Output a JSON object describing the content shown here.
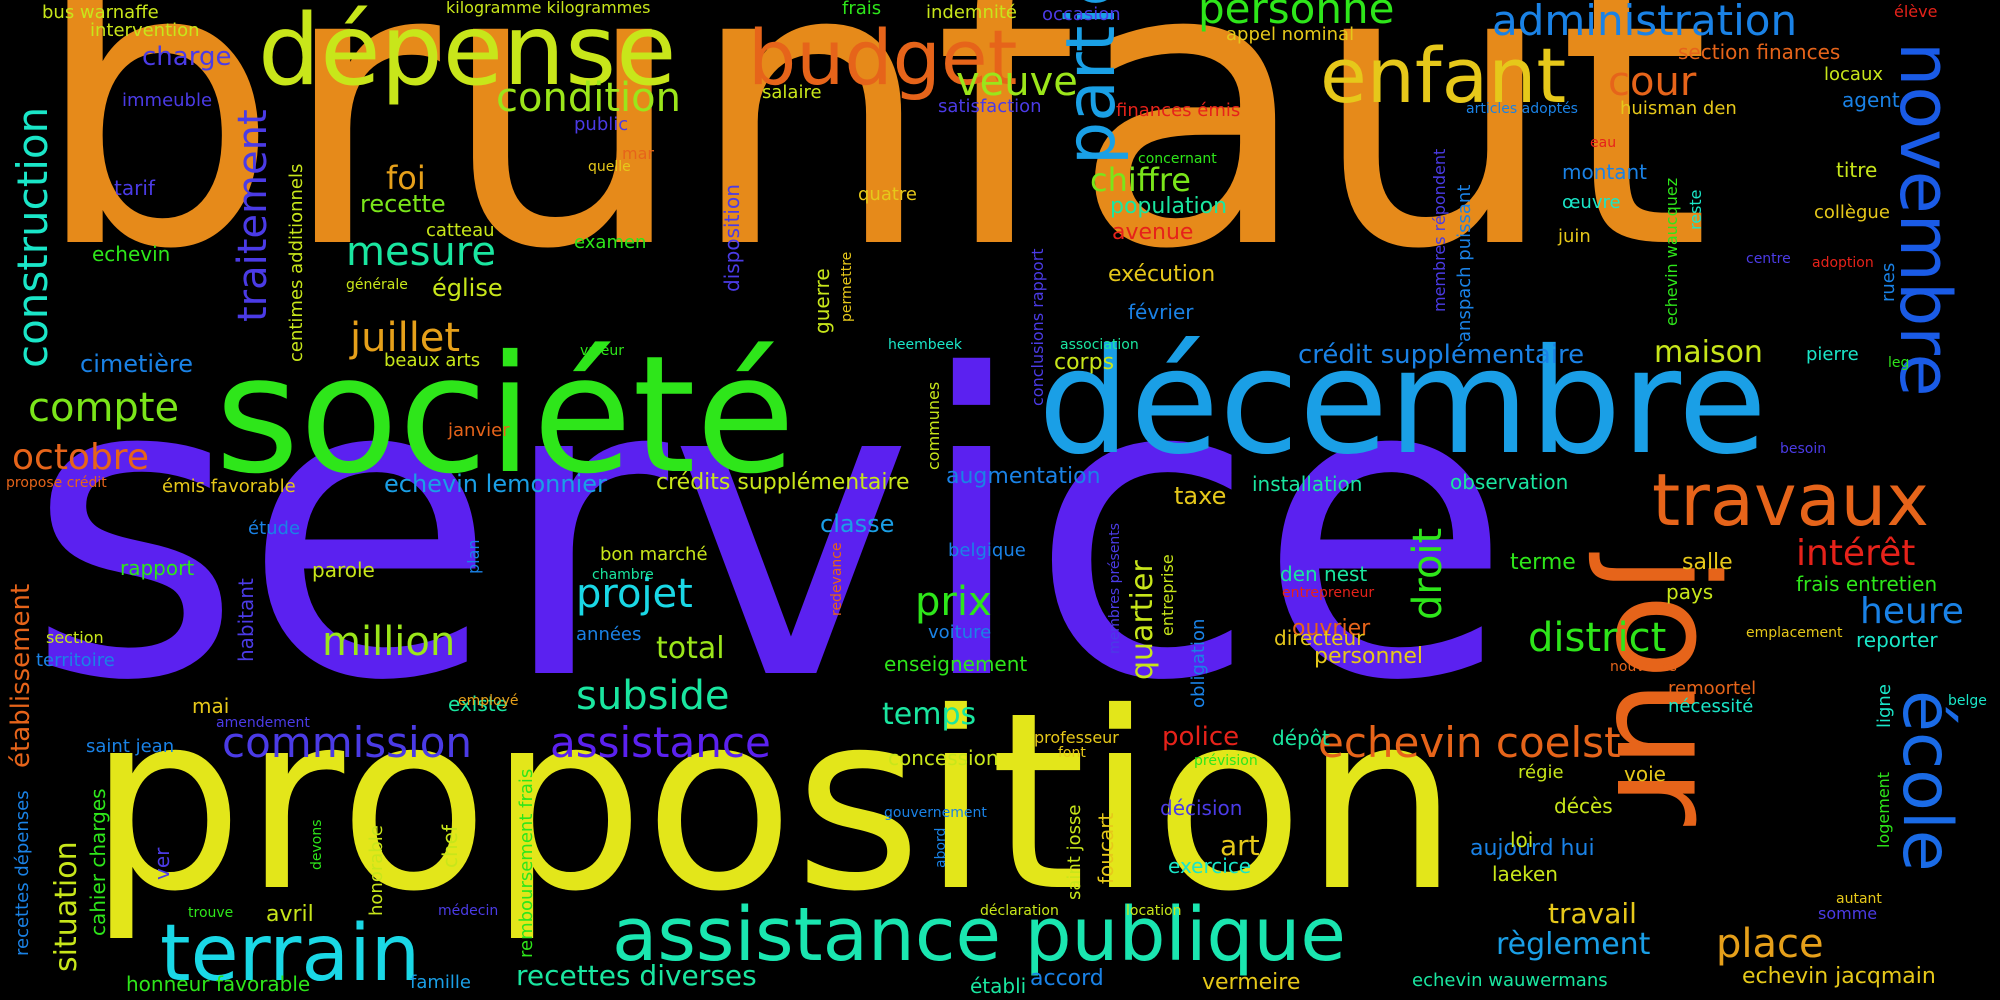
{
  "words": [
    {
      "text": "service",
      "color": "#5b21f0"
    },
    {
      "text": "brunfaut",
      "color": "#e68a1a"
    },
    {
      "text": "proposition",
      "color": "#e3e61a"
    },
    {
      "text": "société",
      "color": "#2ee61a"
    },
    {
      "text": "décembre",
      "color": "#1a9fe6"
    },
    {
      "text": "jour",
      "color": "#e6641a"
    },
    {
      "text": "dépense",
      "color": "#c8e61a"
    },
    {
      "text": "budget",
      "color": "#e6641a"
    },
    {
      "text": "enfant",
      "color": "#e6c81a"
    },
    {
      "text": "terrain",
      "color": "#1ad8e6"
    },
    {
      "text": "assistance publique",
      "color": "#1ae6b0"
    },
    {
      "text": "partie",
      "color": "#1aa0e6"
    },
    {
      "text": "novembre",
      "color": "#1a5be6"
    },
    {
      "text": "école",
      "color": "#1a6be6"
    },
    {
      "text": "travaux",
      "color": "#e6641a"
    },
    {
      "text": "construction",
      "color": "#1ae6c8"
    },
    {
      "text": "administration",
      "color": "#1a82e6"
    },
    {
      "text": "personne",
      "color": "#2ee61a"
    },
    {
      "text": "condition",
      "color": "#9be61a"
    },
    {
      "text": "veuve",
      "color": "#9be61a"
    },
    {
      "text": "cour",
      "color": "#e6641a"
    },
    {
      "text": "traitement",
      "color": "#4b3be6"
    },
    {
      "text": "mesure",
      "color": "#1ae6a0"
    },
    {
      "text": "juillet",
      "color": "#e6a01a"
    },
    {
      "text": "compte",
      "color": "#7be61a"
    },
    {
      "text": "octobre",
      "color": "#e6641a"
    },
    {
      "text": "chiffre",
      "color": "#7be61a"
    },
    {
      "text": "commission",
      "color": "#4b3be6"
    },
    {
      "text": "assistance",
      "color": "#5b21f0"
    },
    {
      "text": "echevin coelst",
      "color": "#e6641a"
    },
    {
      "text": "projet",
      "color": "#1ad8e6"
    },
    {
      "text": "prix",
      "color": "#2ee61a"
    },
    {
      "text": "million",
      "color": "#9be61a"
    },
    {
      "text": "subside",
      "color": "#1ae6a0"
    },
    {
      "text": "district",
      "color": "#2ee61a"
    },
    {
      "text": "heure",
      "color": "#1a82e6"
    },
    {
      "text": "droit",
      "color": "#2ee61a"
    },
    {
      "text": "intérêt",
      "color": "#e6221a"
    },
    {
      "text": "place",
      "color": "#e6a01a"
    },
    {
      "text": "situation",
      "color": "#c8e61a"
    },
    {
      "text": "établissement",
      "color": "#e6641a"
    },
    {
      "text": "recettes diverses",
      "color": "#1ae6a0"
    },
    {
      "text": "règlement",
      "color": "#1a9fe6"
    },
    {
      "text": "maison",
      "color": "#c8e61a"
    },
    {
      "text": "quartier",
      "color": "#c8e61a"
    },
    {
      "text": "foi",
      "color": "#e6a01a"
    },
    {
      "text": "charge",
      "color": "#4b3be6"
    },
    {
      "text": "cimetière",
      "color": "#1a82e6"
    },
    {
      "text": "total",
      "color": "#9be61a"
    },
    {
      "text": "temps",
      "color": "#1ae6a0"
    },
    {
      "text": "art",
      "color": "#e6c81a"
    },
    {
      "text": "travail",
      "color": "#e6c81a"
    },
    {
      "text": "police",
      "color": "#e6221a"
    },
    {
      "text": "crédit supplémentaire",
      "color": "#1a82e6"
    },
    {
      "text": "echevin lemonnier",
      "color": "#1a9fe6"
    },
    {
      "text": "crédits supplémentaire",
      "color": "#c8e61a"
    },
    {
      "text": "recette",
      "color": "#7be61a"
    },
    {
      "text": "église",
      "color": "#c8e61a"
    },
    {
      "text": "avenue",
      "color": "#e6221a"
    },
    {
      "text": "exécution",
      "color": "#e6c81a"
    },
    {
      "text": "population",
      "color": "#1ae6a0"
    },
    {
      "text": "corps",
      "color": "#c8e61a"
    },
    {
      "text": "augmentation",
      "color": "#1a82e6"
    },
    {
      "text": "classe",
      "color": "#1a9fe6"
    },
    {
      "text": "taxe",
      "color": "#e6c81a"
    },
    {
      "text": "installation",
      "color": "#1ae6a0"
    },
    {
      "text": "observation",
      "color": "#1ae6a0"
    },
    {
      "text": "terme",
      "color": "#2ee61a"
    },
    {
      "text": "salle",
      "color": "#e6c81a"
    },
    {
      "text": "pays",
      "color": "#c8e61a"
    },
    {
      "text": "frais entretien",
      "color": "#2ee61a"
    },
    {
      "text": "reporter",
      "color": "#1ae6c8"
    },
    {
      "text": "ouvrier",
      "color": "#e6641a"
    },
    {
      "text": "directeur",
      "color": "#e6c81a"
    },
    {
      "text": "personnel",
      "color": "#e6c81a"
    },
    {
      "text": "den nest",
      "color": "#1ae6a0"
    },
    {
      "text": "enseignement",
      "color": "#2ee61a"
    },
    {
      "text": "concession",
      "color": "#c8e61a"
    },
    {
      "text": "décision",
      "color": "#4b3be6"
    },
    {
      "text": "exercice",
      "color": "#1ae6c8"
    },
    {
      "text": "dépôt",
      "color": "#1ae6a0"
    },
    {
      "text": "aujourd hui",
      "color": "#1a82e6"
    },
    {
      "text": "laeken",
      "color": "#c8e61a"
    },
    {
      "text": "décès",
      "color": "#c8e61a"
    },
    {
      "text": "loi",
      "color": "#c8e61a"
    },
    {
      "text": "régie",
      "color": "#c8e61a"
    },
    {
      "text": "voie",
      "color": "#e6c81a"
    },
    {
      "text": "vermeire",
      "color": "#e6c81a"
    },
    {
      "text": "echevin jacqmain",
      "color": "#e6c81a"
    },
    {
      "text": "echevin wauwermans",
      "color": "#1ae6a0"
    },
    {
      "text": "accord",
      "color": "#1a82e6"
    },
    {
      "text": "établi",
      "color": "#1ae6a0"
    },
    {
      "text": "honneur favorable",
      "color": "#2ee61a"
    },
    {
      "text": "famille",
      "color": "#1a9fe6"
    },
    {
      "text": "avril",
      "color": "#c8e61a"
    },
    {
      "text": "mai",
      "color": "#e6c81a"
    },
    {
      "text": "existe",
      "color": "#1ae6a0"
    },
    {
      "text": "saint jean",
      "color": "#1a82e6"
    },
    {
      "text": "territoire",
      "color": "#1a82e6"
    },
    {
      "text": "section",
      "color": "#c8e61a"
    },
    {
      "text": "rapport",
      "color": "#2ee61a"
    },
    {
      "text": "parole",
      "color": "#c8e61a"
    },
    {
      "text": "étude",
      "color": "#1a82e6"
    },
    {
      "text": "bon marché",
      "color": "#c8e61a"
    },
    {
      "text": "chambre",
      "color": "#1ae6a0"
    },
    {
      "text": "années",
      "color": "#1a82e6"
    },
    {
      "text": "voiture",
      "color": "#1a82e6"
    },
    {
      "text": "belgique",
      "color": "#1a82e6"
    },
    {
      "text": "émis favorable",
      "color": "#e6c81a"
    },
    {
      "text": "propose crédit",
      "color": "#e6641a"
    },
    {
      "text": "janvier",
      "color": "#e6641a"
    },
    {
      "text": "beaux arts",
      "color": "#c8e61a"
    },
    {
      "text": "catteau",
      "color": "#c8e61a"
    },
    {
      "text": "examen",
      "color": "#2ee61a"
    },
    {
      "text": "quatre",
      "color": "#e6c81a"
    },
    {
      "text": "février",
      "color": "#1a82e6"
    },
    {
      "text": "heembeek",
      "color": "#1ae6c8"
    },
    {
      "text": "association",
      "color": "#1ae6a0"
    },
    {
      "text": "valeur",
      "color": "#2ee61a"
    },
    {
      "text": "générale",
      "color": "#c8e61a"
    },
    {
      "text": "echevin",
      "color": "#2ee61a"
    },
    {
      "text": "tarif",
      "color": "#4b3be6"
    },
    {
      "text": "immeuble",
      "color": "#4b3be6"
    },
    {
      "text": "bus warnaffe",
      "color": "#c8e61a"
    },
    {
      "text": "intervention",
      "color": "#c8e61a"
    },
    {
      "text": "kilogramme kilogrammes",
      "color": "#c8e61a"
    },
    {
      "text": "frais",
      "color": "#2ee61a"
    },
    {
      "text": "indemnité",
      "color": "#c8e61a"
    },
    {
      "text": "occasion",
      "color": "#4b3be6"
    },
    {
      "text": "appel nominal",
      "color": "#e6c81a"
    },
    {
      "text": "élève",
      "color": "#e6221a"
    },
    {
      "text": "section finances",
      "color": "#e6641a"
    },
    {
      "text": "locaux",
      "color": "#c8e61a"
    },
    {
      "text": "agent",
      "color": "#1a82e6"
    },
    {
      "text": "salaire",
      "color": "#c8e61a"
    },
    {
      "text": "satisfaction",
      "color": "#4b3be6"
    },
    {
      "text": "finances émis",
      "color": "#e6221a"
    },
    {
      "text": "articles adoptés",
      "color": "#1a82e6"
    },
    {
      "text": "huisman den",
      "color": "#e6c81a"
    },
    {
      "text": "public",
      "color": "#4b3be6"
    },
    {
      "text": "mar",
      "color": "#e6641a"
    },
    {
      "text": "quelle",
      "color": "#e6c81a"
    },
    {
      "text": "concernant",
      "color": "#2ee61a"
    },
    {
      "text": "eau",
      "color": "#e6221a"
    },
    {
      "text": "montant",
      "color": "#1a82e6"
    },
    {
      "text": "titre",
      "color": "#c8e61a"
    },
    {
      "text": "œuvre",
      "color": "#1ae6c8"
    },
    {
      "text": "collègue",
      "color": "#e6c81a"
    },
    {
      "text": "juin",
      "color": "#e6c81a"
    },
    {
      "text": "centre",
      "color": "#4b3be6"
    },
    {
      "text": "adoption",
      "color": "#e6221a"
    },
    {
      "text": "pierre",
      "color": "#1ae6c8"
    },
    {
      "text": "leg",
      "color": "#2ee61a"
    },
    {
      "text": "besoin",
      "color": "#4b3be6"
    },
    {
      "text": "emplacement",
      "color": "#e6c81a"
    },
    {
      "text": "nouvelles",
      "color": "#e6641a"
    },
    {
      "text": "remoortel",
      "color": "#e6641a"
    },
    {
      "text": "nécessité",
      "color": "#1ae6c8"
    },
    {
      "text": "entrepreneur",
      "color": "#e6221a"
    },
    {
      "text": "belge",
      "color": "#1ae6c8"
    },
    {
      "text": "autant",
      "color": "#e6c81a"
    },
    {
      "text": "somme",
      "color": "#4b3be6"
    },
    {
      "text": "professeur",
      "color": "#e6c81a"
    },
    {
      "text": "font",
      "color": "#e6c81a"
    },
    {
      "text": "prévision",
      "color": "#2ee61a"
    },
    {
      "text": "gouvernement",
      "color": "#1a82e6"
    },
    {
      "text": "déclaration",
      "color": "#c8e61a"
    },
    {
      "text": "location",
      "color": "#c8e61a"
    },
    {
      "text": "employé",
      "color": "#e6a01a"
    },
    {
      "text": "amendement",
      "color": "#4b3be6"
    },
    {
      "text": "trouve",
      "color": "#2ee61a"
    },
    {
      "text": "médecin",
      "color": "#4b3be6"
    },
    {
      "text": "centimes additionnels",
      "color": "#c8e61a"
    },
    {
      "text": "disposition",
      "color": "#4b3be6"
    },
    {
      "text": "guerre",
      "color": "#c8e61a"
    },
    {
      "text": "permettre",
      "color": "#e6c81a"
    },
    {
      "text": "conclusions rapport",
      "color": "#4b3be6"
    },
    {
      "text": "communes",
      "color": "#c8e61a"
    },
    {
      "text": "membres répondent",
      "color": "#4b3be6"
    },
    {
      "text": "anspach puissant",
      "color": "#1a82e6"
    },
    {
      "text": "echevin waucquez",
      "color": "#2ee61a"
    },
    {
      "text": "reste",
      "color": "#1ae6c8"
    },
    {
      "text": "rues",
      "color": "#1a82e6"
    },
    {
      "text": "habitant",
      "color": "#4b3be6"
    },
    {
      "text": "plan",
      "color": "#1a82e6"
    },
    {
      "text": "redevance",
      "color": "#e6641a"
    },
    {
      "text": "membres présents",
      "color": "#4b3be6"
    },
    {
      "text": "entreprise",
      "color": "#c8e61a"
    },
    {
      "text": "obligation",
      "color": "#1a82e6"
    },
    {
      "text": "ligne",
      "color": "#1ae6c8"
    },
    {
      "text": "logement",
      "color": "#2ee61a"
    },
    {
      "text": "recettes dépenses",
      "color": "#1a82e6"
    },
    {
      "text": "cahier charges",
      "color": "#2ee61a"
    },
    {
      "text": "ver",
      "color": "#4b3be6"
    },
    {
      "text": "devons",
      "color": "#2ee61a"
    },
    {
      "text": "honorable",
      "color": "#c8e61a"
    },
    {
      "text": "chef",
      "color": "#c8e61a"
    },
    {
      "text": "remboursement frais",
      "color": "#2ee61a"
    },
    {
      "text": "abord",
      "color": "#1a82e6"
    },
    {
      "text": "saint josse",
      "color": "#c8e61a"
    },
    {
      "text": "foucart",
      "color": "#e6c81a"
    }
  ]
}
